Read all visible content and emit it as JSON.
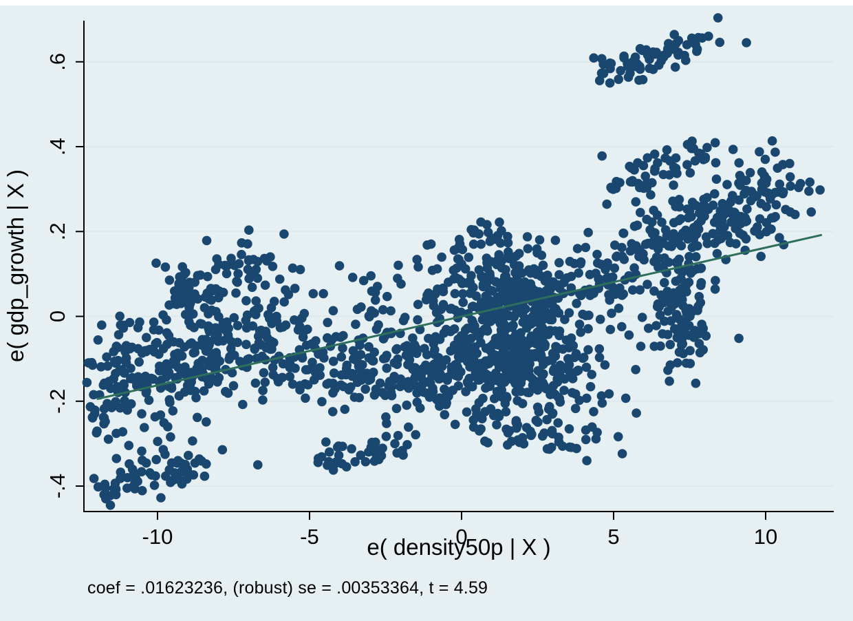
{
  "caption": "coef = .01623236, (robust) se = .00353364, t = 4.59",
  "chart_data": {
    "type": "scatter",
    "title": "",
    "xlabel": "e( density50p | X )",
    "ylabel": "e( gdp_growth | X )",
    "xlim": [
      -12.42,
      12.24
    ],
    "ylim": [
      -0.46,
      0.697
    ],
    "x_ticks": [
      {
        "value": -10,
        "label": "-10"
      },
      {
        "value": -5,
        "label": "-5"
      },
      {
        "value": 0,
        "label": "0"
      },
      {
        "value": 5,
        "label": "5"
      },
      {
        "value": 10,
        "label": "10"
      }
    ],
    "y_ticks": [
      {
        "value": 0.6,
        "label": ".6"
      },
      {
        "value": 0.4,
        "label": ".4"
      },
      {
        "value": 0.2,
        "label": ".2"
      },
      {
        "value": 0,
        "label": "0"
      },
      {
        "value": -0.2,
        "label": "-.2"
      },
      {
        "value": -0.4,
        "label": "-.4"
      }
    ],
    "grid": "horizontal",
    "legend": "none",
    "colors": {
      "marker": "#1a476f",
      "fit_line": "#2e6f5c",
      "grid": "#dde9ec",
      "axis": "#000000",
      "plot_background": "#ffffff",
      "page_background": "#e6eff1"
    },
    "marker_radius_px": 6.8,
    "regression_line": {
      "x1": -12.0,
      "y1": -0.195,
      "x2": 11.85,
      "y2": 0.192,
      "coef": 0.01623236,
      "se": 0.00353364,
      "t": 4.59
    },
    "clusters": [
      {
        "name": "left-main-band",
        "shape": "band",
        "from": [
          -12.2,
          -0.19
        ],
        "to": [
          -5.8,
          -0.01
        ],
        "count": 330,
        "jx": 0.35,
        "jy": 0.075
      },
      {
        "name": "left-upper-band",
        "shape": "band",
        "from": [
          -9.7,
          0.05
        ],
        "to": [
          -6.9,
          0.12
        ],
        "count": 70,
        "jx": 0.3,
        "jy": 0.035
      },
      {
        "name": "left-bottom-cluster",
        "shape": "band",
        "from": [
          -11.8,
          -0.415
        ],
        "to": [
          -8.0,
          -0.335
        ],
        "count": 60,
        "jx": 0.25,
        "jy": 0.022
      },
      {
        "name": "mid-bottom-cluster",
        "shape": "band",
        "from": [
          -4.5,
          -0.35
        ],
        "to": [
          -1.7,
          -0.29
        ],
        "count": 42,
        "jx": 0.2,
        "jy": 0.022
      },
      {
        "name": "mid-bridge",
        "shape": "band",
        "from": [
          -5.6,
          -0.1
        ],
        "to": [
          -0.5,
          -0.13
        ],
        "count": 200,
        "jx": 0.7,
        "jy": 0.055
      },
      {
        "name": "mid-left-sparse",
        "shape": "blob",
        "center": [
          -3.4,
          0.05
        ],
        "sdx": 0.6,
        "sdy": 0.035,
        "count": 18
      },
      {
        "name": "central-upper",
        "shape": "blob",
        "center": [
          1.6,
          0.06
        ],
        "sdx": 1.5,
        "sdy": 0.055,
        "count": 280
      },
      {
        "name": "central-lower",
        "shape": "blob",
        "center": [
          1.7,
          -0.1
        ],
        "sdx": 1.5,
        "sdy": 0.06,
        "count": 380
      },
      {
        "name": "central-top-fringe",
        "shape": "band",
        "from": [
          -0.6,
          0.14
        ],
        "to": [
          1.2,
          0.2
        ],
        "count": 25,
        "jx": 0.5,
        "jy": 0.025
      },
      {
        "name": "central-bottom-tail",
        "shape": "band",
        "from": [
          0.3,
          -0.25
        ],
        "to": [
          4.5,
          -0.29
        ],
        "count": 60,
        "jx": 0.5,
        "jy": 0.03
      },
      {
        "name": "right-main-band",
        "shape": "band",
        "from": [
          4.9,
          0.12
        ],
        "to": [
          10.9,
          0.3
        ],
        "count": 240,
        "jx": 0.5,
        "jy": 0.05
      },
      {
        "name": "right-lower-blob",
        "shape": "blob",
        "center": [
          7.2,
          0.0
        ],
        "sdx": 0.5,
        "sdy": 0.075,
        "count": 110
      },
      {
        "name": "right-mid-band",
        "shape": "band",
        "from": [
          4.9,
          0.29
        ],
        "to": [
          8.2,
          0.4
        ],
        "count": 55,
        "jx": 0.25,
        "jy": 0.022
      },
      {
        "name": "top-right-band",
        "shape": "band",
        "from": [
          4.5,
          0.575
        ],
        "to": [
          8.3,
          0.655
        ],
        "count": 65,
        "jx": 0.3,
        "jy": 0.02
      }
    ],
    "outlier_points": [
      [
        9.37,
        0.645
      ],
      [
        4.62,
        0.378
      ],
      [
        -6.7,
        -0.35
      ],
      [
        -11.35,
        -0.335
      ],
      [
        5.75,
        -0.228
      ],
      [
        10.82,
        0.307
      ],
      [
        11.79,
        0.298
      ],
      [
        11.5,
        0.246
      ],
      [
        10.32,
        0.235
      ],
      [
        -11.55,
        -0.445
      ],
      [
        -11.7,
        -0.43
      ]
    ]
  }
}
